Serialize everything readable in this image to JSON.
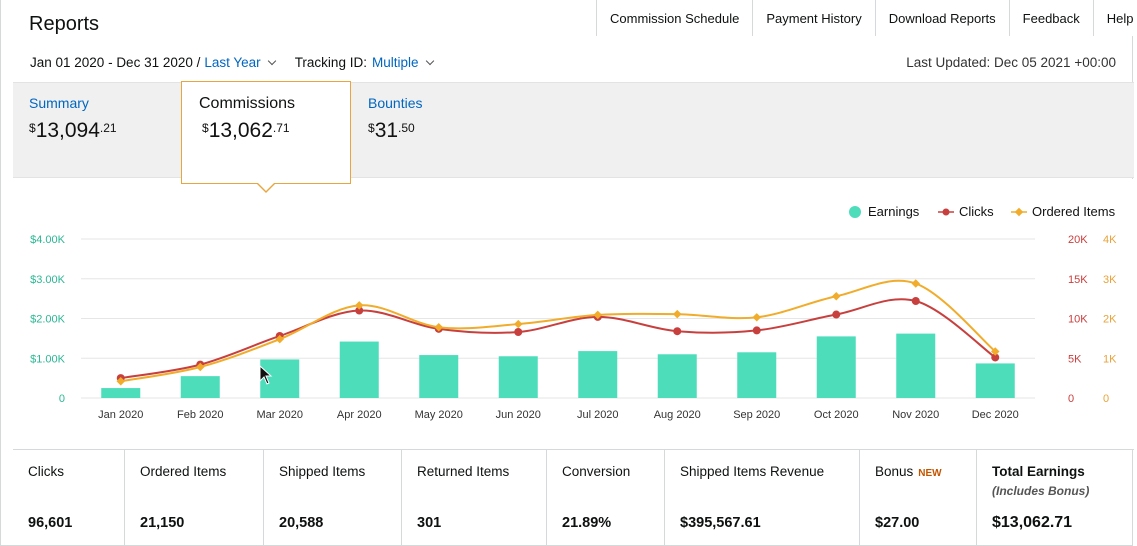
{
  "header": {
    "title": "Reports",
    "nav": [
      "Commission Schedule",
      "Payment History",
      "Download Reports",
      "Feedback",
      "Help"
    ]
  },
  "filters": {
    "date_range": "Jan 01 2020 - Dec 31 2020 /",
    "period": "Last Year",
    "tracking_label": "Tracking ID:",
    "tracking_value": "Multiple",
    "last_updated": "Last Updated: Dec 05 2021 +00:00"
  },
  "tabs": {
    "summary": {
      "label": "Summary",
      "dollars": "13,094",
      "cents": ".21"
    },
    "commissions": {
      "label": "Commissions",
      "dollars": "13,062",
      "cents": ".71"
    },
    "bounties": {
      "label": "Bounties",
      "dollars": "31",
      "cents": ".50"
    },
    "currency_symbol": "$",
    "active": "Commissions"
  },
  "chart_data": {
    "type": "bar+line",
    "categories": [
      "Jan 2020",
      "Feb 2020",
      "Mar 2020",
      "Apr 2020",
      "May 2020",
      "Jun 2020",
      "Jul 2020",
      "Aug 2020",
      "Sep 2020",
      "Oct 2020",
      "Nov 2020",
      "Dec 2020"
    ],
    "series": [
      {
        "name": "Earnings",
        "type": "bar",
        "axis": "left",
        "color": "#4dddbb",
        "values": [
          250,
          550,
          970,
          1420,
          1080,
          1050,
          1180,
          1100,
          1150,
          1550,
          1620,
          870
        ]
      },
      {
        "name": "Clicks",
        "type": "line",
        "axis": "right1",
        "color": "#c7403e",
        "values": [
          2500,
          4200,
          7800,
          11000,
          8700,
          8300,
          10200,
          8400,
          8500,
          10500,
          12200,
          5100
        ]
      },
      {
        "name": "Ordered Items",
        "type": "line",
        "axis": "right2",
        "color": "#f0ac2a",
        "values": [
          420,
          780,
          1480,
          2330,
          1780,
          1860,
          2090,
          2110,
          2030,
          2560,
          2880,
          1170
        ]
      }
    ],
    "axes": {
      "left": {
        "ticks": [
          "0",
          "$1.00K",
          "$2.00K",
          "$3.00K",
          "$4.00K"
        ],
        "range": [
          0,
          4000
        ],
        "color": "#2ab892"
      },
      "right1": {
        "ticks": [
          "0",
          "5K",
          "10K",
          "15K",
          "20K"
        ],
        "range": [
          0,
          20000
        ],
        "color": "#c7403e"
      },
      "right2": {
        "ticks": [
          "0",
          "1K",
          "2K",
          "3K",
          "4K"
        ],
        "range": [
          0,
          4000
        ],
        "color": "#e8a33a"
      }
    },
    "grid": true,
    "legend_position": "top-right"
  },
  "stats": [
    {
      "label": "Clicks",
      "value": "96,601"
    },
    {
      "label": "Ordered Items",
      "value": "21,150"
    },
    {
      "label": "Shipped Items",
      "value": "20,588"
    },
    {
      "label": "Returned Items",
      "value": "301"
    },
    {
      "label": "Conversion",
      "value": "21.89%"
    },
    {
      "label": "Shipped Items Revenue",
      "value": "$395,567.61"
    },
    {
      "label": "Bonus",
      "badge": "NEW",
      "value": "$27.00"
    },
    {
      "label": "Total Earnings",
      "sublabel": "(Includes Bonus)",
      "value": "$13,062.71"
    }
  ]
}
